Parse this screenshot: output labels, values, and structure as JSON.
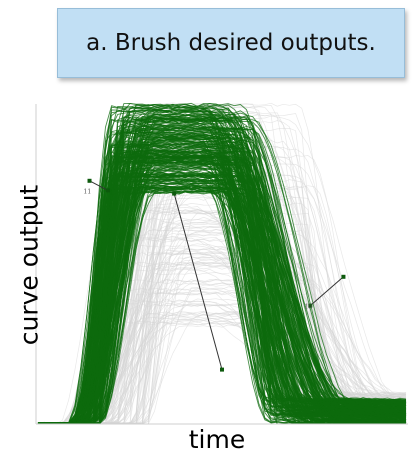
{
  "caption": "a. Brush desired outputs.",
  "chart_data": {
    "type": "line",
    "title": "",
    "xlabel": "time",
    "ylabel": "curve output",
    "xlim": [
      0,
      1
    ],
    "ylim": [
      0,
      1
    ],
    "grid": false,
    "tick_labels_shown": false,
    "n_curves_highlighted": 260,
    "n_curves_background": 160,
    "highlight_color": "#0d6b0d",
    "background_color": "#d5d5d5",
    "curve_model": "trapezoid pulse: rises from 0 at t_start to plateau at t_peak, holds, falls back to 0 at t_end",
    "highlighted_family": {
      "rise_start": [
        0.08,
        0.17
      ],
      "rise_end": [
        0.19,
        0.33
      ],
      "plateau_level": [
        0.72,
        1.0
      ],
      "fall_start": [
        0.44,
        0.58
      ],
      "fall_end": [
        0.62,
        0.86
      ],
      "tail_level": [
        0.0,
        0.08
      ]
    },
    "background_family": {
      "rise_start": [
        0.05,
        0.3
      ],
      "rise_end": [
        0.2,
        0.45
      ],
      "plateau_level": [
        0.3,
        1.0
      ],
      "fall_start": [
        0.4,
        0.75
      ],
      "fall_end": [
        0.7,
        1.0
      ],
      "tail_level": [
        0.0,
        0.1
      ]
    },
    "brushes": [
      {
        "label": "11",
        "x1": 0.19,
        "y1": 0.73,
        "x2": 0.14,
        "y2": 0.76
      },
      {
        "label": "",
        "x1": 0.37,
        "y1": 0.72,
        "x2": 0.5,
        "y2": 0.17
      },
      {
        "label": "10",
        "x1": 0.74,
        "y1": 0.37,
        "x2": 0.83,
        "y2": 0.46
      }
    ]
  }
}
